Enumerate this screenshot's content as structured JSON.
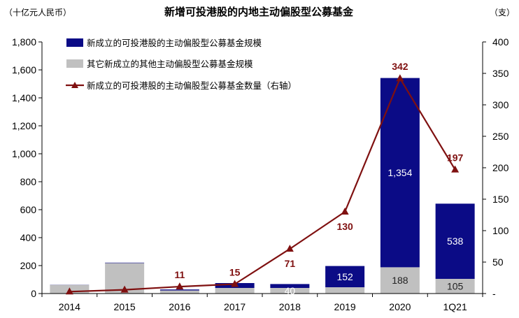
{
  "chart_data": {
    "type": "bar",
    "title": "新增可投港股的内地主动偏股型公募基金",
    "left_unit": "（十亿元人民币）",
    "right_unit": "（支）",
    "categories": [
      "2014",
      "2015",
      "2016",
      "2017",
      "2018",
      "2019",
      "2020",
      "1Q21"
    ],
    "series": [
      {
        "name": "新成立的可投港股的主动偏股型公募基金规模",
        "kind": "bar-stack-top",
        "color": "#0b0b86",
        "values": [
          1,
          3,
          7,
          35,
          28,
          152,
          1354,
          538
        ],
        "labels": [
          "",
          "",
          "",
          "",
          "",
          "152",
          "1,354",
          "538"
        ]
      },
      {
        "name": "其它新成立的其他主动偏股型公募基金规模",
        "kind": "bar-stack-bottom",
        "color": "#c0c0c0",
        "values": [
          62,
          218,
          22,
          40,
          40,
          45,
          188,
          105
        ],
        "labels": [
          "",
          "",
          "",
          "",
          "40",
          "",
          "188",
          "105"
        ]
      },
      {
        "name": "新成立的可投港股的主动偏股型公募基金数量（右轴）",
        "kind": "line",
        "axis": "right",
        "color": "#7f1010",
        "values": [
          3,
          6,
          11,
          15,
          71,
          130,
          342,
          197
        ],
        "labels": [
          "",
          "",
          "11",
          "15",
          "71",
          "130",
          "342",
          "197"
        ]
      }
    ],
    "left_axis": {
      "min": 0,
      "max": 1800,
      "step": 200,
      "tick_labels": [
        "0",
        "200",
        "400",
        "600",
        "800",
        "1,000",
        "1,200",
        "1,400",
        "1,600",
        "1,800"
      ]
    },
    "right_axis": {
      "min": 0,
      "max": 400,
      "step": 50,
      "tick_labels": [
        "-",
        "50",
        "100",
        "150",
        "200",
        "250",
        "300",
        "350",
        "400"
      ]
    },
    "legend_position": "top-left",
    "grid": false
  }
}
